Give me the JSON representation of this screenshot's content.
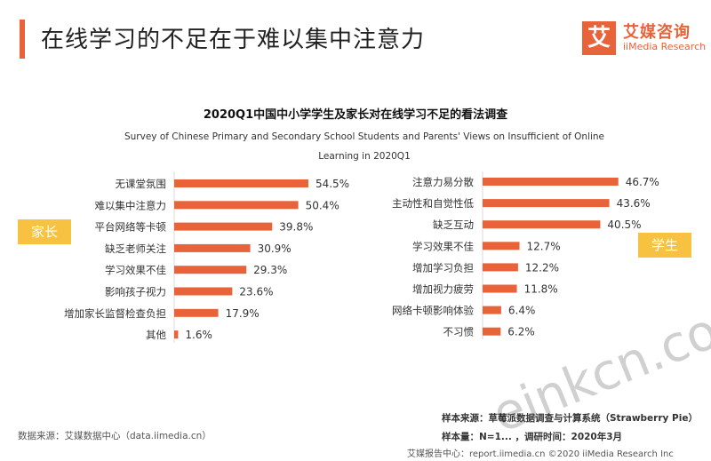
{
  "page_title": "在线学习的不足在于难以集中注意力",
  "logo": {
    "icon_char": "艾",
    "name_cn": "艾媒咨询",
    "name_en": "iiMedia Research"
  },
  "chart_data": {
    "type": "bar",
    "title": "2020Q1中国中小学学生及家长对在线学习不足的看法调查",
    "subtitle": "Survey of Chinese Primary and Secondary School Students and Parents' Views on Insufficient of Online Learning in 2020Q1",
    "bar_color": "#e8633a",
    "panels": [
      {
        "name": "家长",
        "categories": [
          "无课堂氛围",
          "难以集中注意力",
          "平台网络等卡顿",
          "缺乏老师关注",
          "学习效果不佳",
          "影响孩子视力",
          "增加家长监督检查负担",
          "其他"
        ],
        "values": [
          54.5,
          50.4,
          39.8,
          30.9,
          29.3,
          23.6,
          17.9,
          1.6
        ],
        "labels": [
          "54.5%",
          "50.4%",
          "39.8%",
          "30.9%",
          "29.3%",
          "23.6%",
          "17.9%",
          "1.6%"
        ]
      },
      {
        "name": "学生",
        "categories": [
          "注意力易分散",
          "主动性和自觉性低",
          "缺乏互动",
          "学习效果不佳",
          "增加学习负担",
          "增加视力疲劳",
          "网络卡顿影响体验",
          "不习惯"
        ],
        "values": [
          46.7,
          43.6,
          40.5,
          12.7,
          12.2,
          11.8,
          6.4,
          6.2
        ],
        "labels": [
          "46.7%",
          "43.6%",
          "40.5%",
          "12.7%",
          "12.2%",
          "11.8%",
          "6.4%",
          "6.2%"
        ]
      }
    ]
  },
  "source_left": "数据来源：艾媒数据中心（data.iimedia.cn）",
  "sample_source": "样本来源：草莓派数据调查与计算系统（Strawberry  Pie）",
  "sample_size": "样本量：N=1... ，调研时间：2020年3月",
  "footer": "艾媒报告中心：report.iimedia.cn  ©2020  iiMedia Research  Inc",
  "watermark": "einkcn.com"
}
